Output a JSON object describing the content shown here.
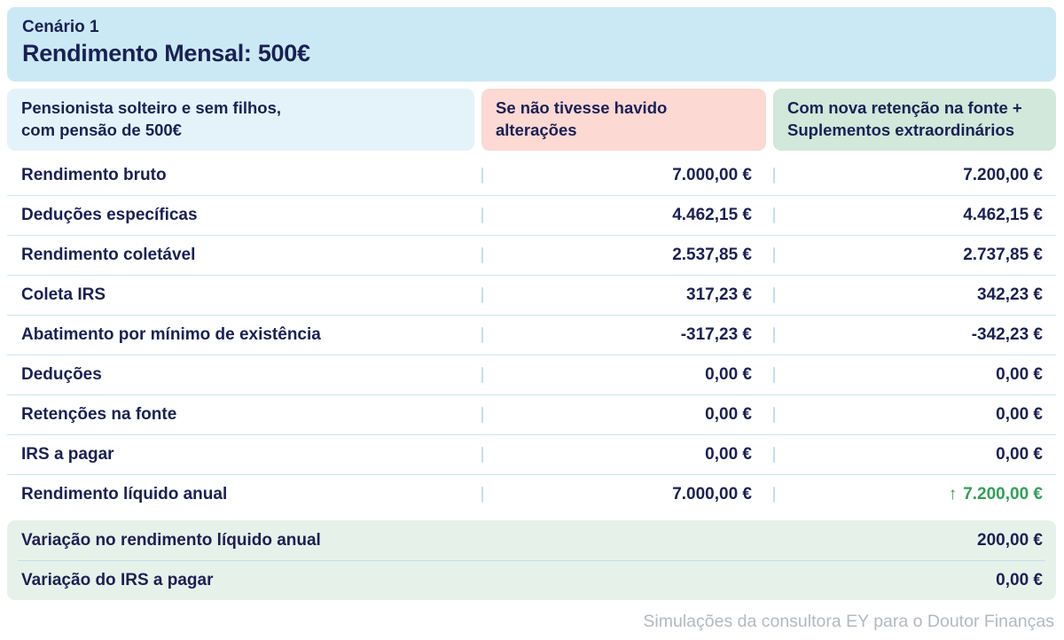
{
  "colors": {
    "navy": "#1a2055",
    "title-card-bg": "#cbe9f4",
    "profile-header-bg": "#e4f3fa",
    "old-header-bg": "#fcd9d3",
    "new-header-bg": "#d1e8da",
    "summary-bg": "#e6f2e9",
    "divider": "#c9e6f2",
    "tick": "#bfe0ee",
    "positive": "#2fa156",
    "footer-gray": "#b1b9c1"
  },
  "title_card": {
    "eyebrow": "Cenário 1",
    "title": "Rendimento Mensal: 500€"
  },
  "columns": {
    "profile": {
      "line1": "Pensionista solteiro e sem filhos,",
      "line2": "com pensão de 500€"
    },
    "old": {
      "line1": "Se não tivesse havido",
      "line2": "alterações"
    },
    "new": {
      "line1": "Com nova retenção na fonte +",
      "line2": "Suplementos extraordinários"
    }
  },
  "table": {
    "rows": [
      {
        "label": "Rendimento bruto",
        "old": "7.000,00 €",
        "new": "7.200,00 €"
      },
      {
        "label": "Deduções específicas",
        "old": "4.462,15 €",
        "new": "4.462,15 €"
      },
      {
        "label": "Rendimento coletável",
        "old": "2.537,85 €",
        "new": "2.737,85 €"
      },
      {
        "label": "Coleta IRS",
        "old": "317,23 €",
        "new": "342,23 €"
      },
      {
        "label": "Abatimento por mínimo de existência",
        "old": "-317,23 €",
        "new": "-342,23 €"
      },
      {
        "label": "Deduções",
        "old": "0,00 €",
        "new": "0,00 €"
      },
      {
        "label": "Retenções na fonte",
        "old": "0,00 €",
        "new": "0,00 €"
      },
      {
        "label": "IRS a pagar",
        "old": "0,00 €",
        "new": "0,00 €"
      },
      {
        "label": "Rendimento líquido anual",
        "old": "7.000,00 €",
        "new": "7.200,00 €",
        "new_arrow": "↑",
        "positive_new": true
      }
    ]
  },
  "summary": {
    "rows": [
      {
        "label": "Variação no rendimento líquido anual",
        "value": "200,00 €"
      },
      {
        "label": "Variação do IRS a pagar",
        "value": "0,00 €"
      }
    ]
  },
  "footer": {
    "text": "Simulações da consultora EY para o Doutor Finanças"
  },
  "chart_data": {
    "type": "table",
    "title": "Cenário 1 — Rendimento Mensal: 500€",
    "row_header": "Pensionista solteiro e sem filhos, com pensão de 500€",
    "columns": [
      "Se não tivesse havido alterações",
      "Com nova retenção na fonte + Suplementos extraordinários"
    ],
    "rows": [
      [
        "Rendimento bruto",
        "7.000,00 €",
        "7.200,00 €"
      ],
      [
        "Deduções específicas",
        "4.462,15 €",
        "4.462,15 €"
      ],
      [
        "Rendimento coletável",
        "2.537,85 €",
        "2.737,85 €"
      ],
      [
        "Coleta IRS",
        "317,23 €",
        "342,23 €"
      ],
      [
        "Abatimento por mínimo de existência",
        "-317,23 €",
        "-342,23 €"
      ],
      [
        "Deduções",
        "0,00 €",
        "0,00 €"
      ],
      [
        "Retenções na fonte",
        "0,00 €",
        "0,00 €"
      ],
      [
        "IRS a pagar",
        "0,00 €",
        "0,00 €"
      ],
      [
        "Rendimento líquido anual",
        "7.000,00 €",
        "↑ 7.200,00 €"
      ]
    ],
    "summary_rows": [
      [
        "Variação no rendimento líquido anual",
        "200,00 €"
      ],
      [
        "Variação do IRS a pagar",
        "0,00 €"
      ]
    ],
    "footnote": "Simulações da consultora EY para o Doutor Finanças"
  }
}
